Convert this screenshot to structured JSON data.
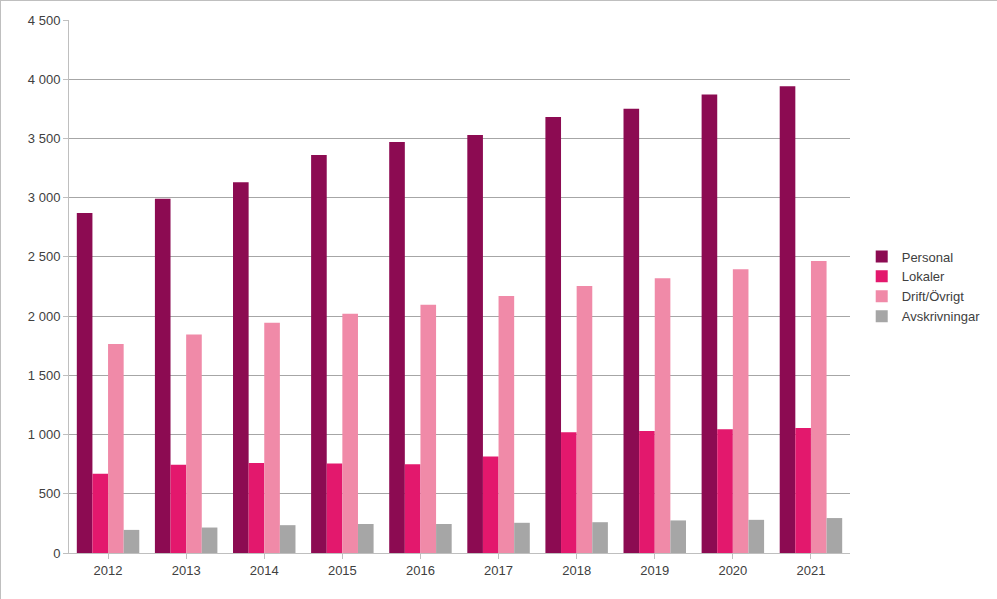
{
  "chart_data": {
    "type": "bar",
    "categories": [
      "2012",
      "2013",
      "2014",
      "2015",
      "2016",
      "2017",
      "2018",
      "2019",
      "2020",
      "2021"
    ],
    "series": [
      {
        "name": "Personal",
        "color": "#8c0b52",
        "values": [
          2870,
          2990,
          3130,
          3360,
          3470,
          3530,
          3680,
          3750,
          3870,
          3940
        ]
      },
      {
        "name": "Lokaler",
        "color": "#e3186d",
        "values": [
          670,
          745,
          760,
          755,
          750,
          815,
          1020,
          1030,
          1045,
          1055
        ]
      },
      {
        "name": "Drift/Övrigt",
        "color": "#f08aa8",
        "values": [
          1765,
          1845,
          1945,
          2020,
          2095,
          2170,
          2255,
          2320,
          2395,
          2465
        ]
      },
      {
        "name": "Avskrivningar",
        "color": "#a6a6a6",
        "values": [
          195,
          215,
          235,
          245,
          245,
          255,
          260,
          275,
          280,
          295
        ]
      }
    ],
    "ylim": [
      0,
      4500
    ],
    "yticks": [
      0,
      500,
      {
        "value": 1000,
        "label": "1 000"
      },
      {
        "value": 1500,
        "label": "1 500"
      },
      {
        "value": 2000,
        "label": "2 000"
      },
      {
        "value": 2500,
        "label": "2 500"
      },
      {
        "value": 3000,
        "label": "3 000"
      },
      {
        "value": 3500,
        "label": "3 500"
      },
      {
        "value": 4000,
        "label": "4 000"
      },
      {
        "value": 4500,
        "label": "4 500"
      }
    ],
    "grid": true,
    "legend": "right"
  }
}
